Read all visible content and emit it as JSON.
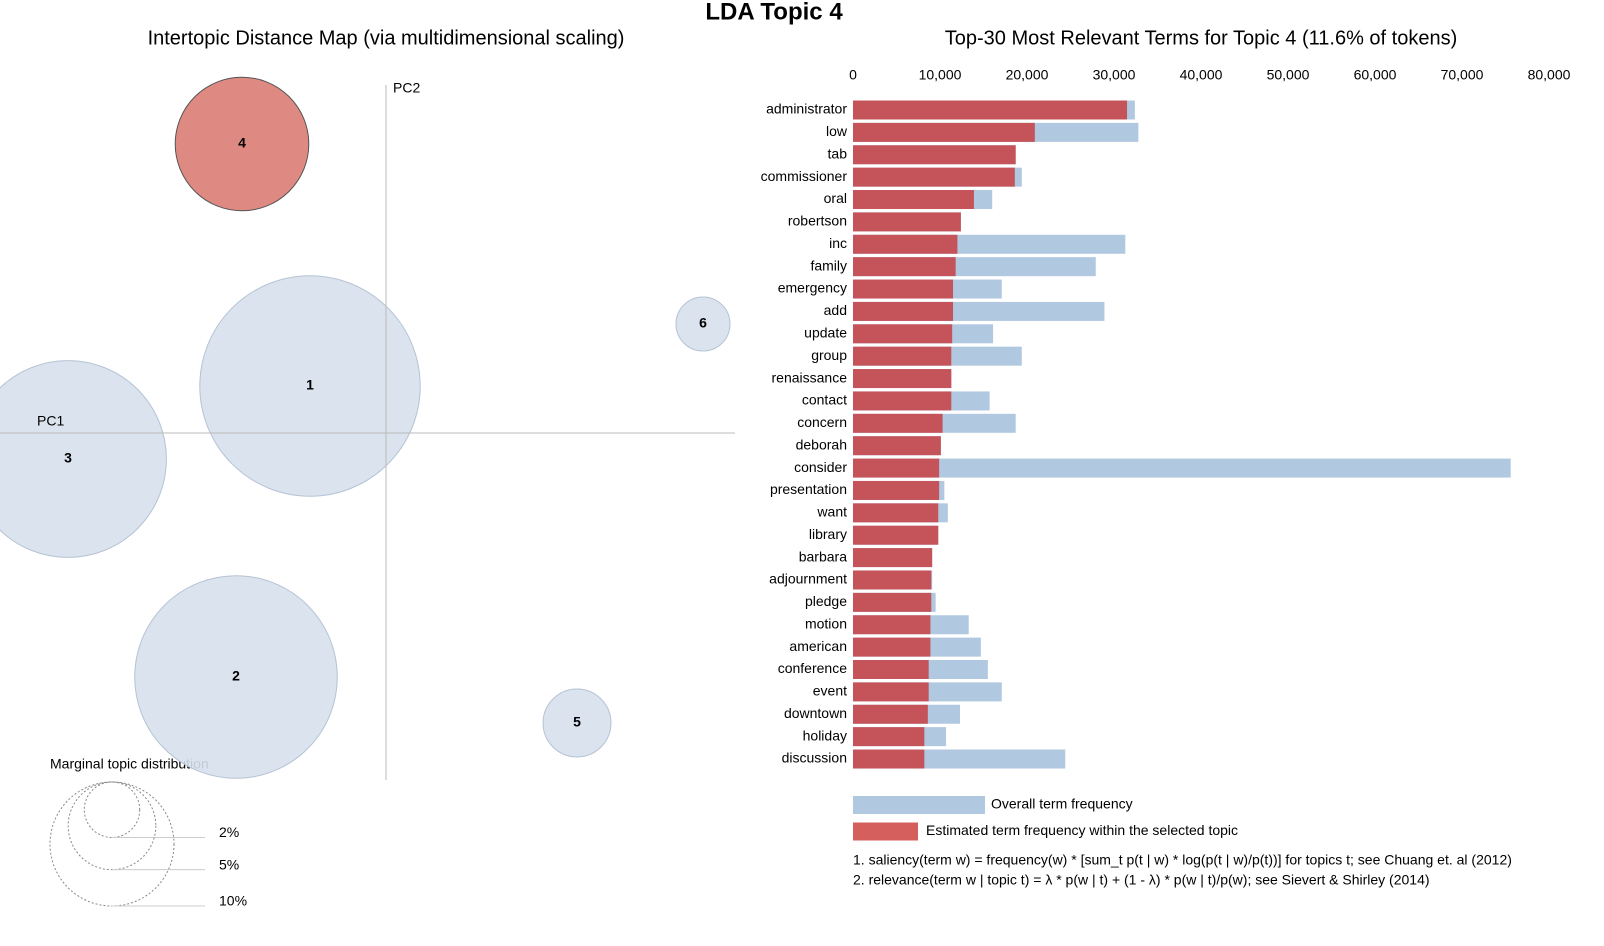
{
  "title": "LDA Topic 4",
  "chart_data": [
    {
      "type": "bubble",
      "title": "Intertopic Distance Map (via multidimensional scaling)",
      "x_label": "PC1",
      "y_label": "PC2",
      "labels": [
        "1",
        "2",
        "3",
        "4",
        "5",
        "6"
      ],
      "x": [
        -0.076,
        -0.15,
        -0.318,
        -0.144,
        0.191,
        0.317
      ],
      "y": [
        0.047,
        -0.244,
        -0.026,
        0.289,
        -0.29,
        0.109
      ],
      "sizes": [
        31.6,
        26.7,
        25.2,
        11.6,
        3.0,
        1.9
      ],
      "selected": 3,
      "color": "#d7e0ec",
      "selected_color": "#de8a83",
      "xlim": [
        -0.386,
        0.349
      ],
      "ylim": [
        -0.347,
        0.348
      ],
      "size_legend_title": "Marginal topic distribution",
      "size_legend": [
        {
          "value": 2,
          "label": "2%"
        },
        {
          "value": 5,
          "label": "5%"
        },
        {
          "value": 10,
          "label": "10%"
        }
      ]
    },
    {
      "type": "bar",
      "title": "Top-30 Most Relevant Terms for Topic 4 (11.6% of tokens)",
      "categories": [
        "administrator",
        "low",
        "tab",
        "commissioner",
        "oral",
        "robertson",
        "inc",
        "family",
        "emergency",
        "add",
        "update",
        "group",
        "renaissance",
        "contact",
        "concern",
        "deborah",
        "consider",
        "presentation",
        "want",
        "library",
        "barbara",
        "adjournment",
        "pledge",
        "motion",
        "american",
        "conference",
        "event",
        "downtown",
        "holiday",
        "discussion"
      ],
      "series": [
        {
          "name": "Overall term frequency",
          "color": "#b1c8e1",
          "values": [
            32400,
            32800,
            18700,
            19400,
            16000,
            12400,
            31300,
            27900,
            17100,
            28900,
            16100,
            19400,
            11300,
            15700,
            18700,
            10100,
            75600,
            10500,
            10900,
            9800,
            9100,
            9100,
            9500,
            13300,
            14700,
            15500,
            17100,
            12300,
            10700,
            24400
          ]
        },
        {
          "name": "Estimated term frequency within the selected topic",
          "color": "#c4545a",
          "values": [
            31500,
            20900,
            18700,
            18600,
            13900,
            12400,
            12000,
            11800,
            11500,
            11500,
            11400,
            11300,
            11300,
            11300,
            10300,
            10100,
            9900,
            9900,
            9800,
            9800,
            9100,
            9000,
            9000,
            8900,
            8900,
            8700,
            8700,
            8600,
            8200,
            8200
          ]
        }
      ],
      "xlim": [
        0,
        80000
      ],
      "xticks": [
        0,
        {
          "value": 10000,
          "label": "10,000"
        },
        {
          "value": 20000,
          "label": "20,000"
        },
        {
          "value": 30000,
          "label": "30,000"
        },
        {
          "value": 40000,
          "label": "40,000"
        },
        {
          "value": 50000,
          "label": "50,000"
        },
        {
          "value": 60000,
          "label": "60,000"
        },
        {
          "value": 70000,
          "label": "70,000"
        },
        {
          "value": 80000,
          "label": "80,000"
        }
      ],
      "notes": [
        "1. saliency(term w) = frequency(w) * [sum_t p(t | w) * log(p(t | w)/p(t))] for topics t; see Chuang et. al (2012)",
        "2. relevance(term w | topic t) = λ * p(w | t) + (1 - λ) * p(w | t)/p(w); see Sievert & Shirley (2014)"
      ]
    }
  ]
}
